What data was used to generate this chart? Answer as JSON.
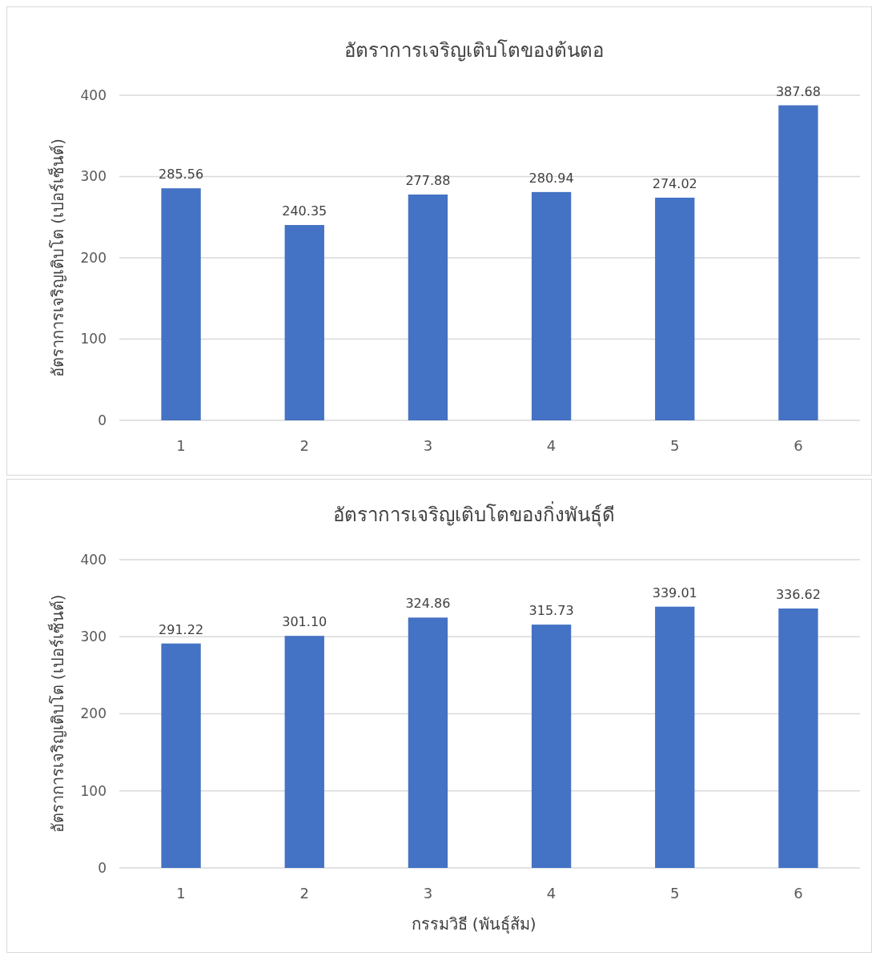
{
  "chart_data": [
    {
      "type": "bar",
      "title": "อัตราการเจริญเติบโตของต้นตอ",
      "ylabel": "อัตราการเจริญเติบโต (เปอร์เซ็นต์)",
      "categories": [
        "1",
        "2",
        "3",
        "4",
        "5",
        "6"
      ],
      "values": [
        285.56,
        240.35,
        277.88,
        280.94,
        274.02,
        387.68
      ],
      "value_labels": [
        "285.56",
        "240.35",
        "277.88",
        "280.94",
        "274.02",
        "387.68"
      ],
      "color": "#4472c4",
      "ylim": [
        0,
        400
      ],
      "yticks": [
        0,
        100,
        200,
        300,
        400
      ],
      "grid": "y"
    },
    {
      "type": "bar",
      "title": "อัตราการเจริญเติบโตของกิ่งพันธุ์ดี",
      "xlabel": "กรรมวิธี (พันธุ์ส้ม)",
      "ylabel": "อัตราการเจริญเติบโต (เปอร์เซ็นต์)",
      "categories": [
        "1",
        "2",
        "3",
        "4",
        "5",
        "6"
      ],
      "values": [
        291.22,
        301.1,
        324.86,
        315.73,
        339.01,
        336.62
      ],
      "value_labels": [
        "291.22",
        "301.10",
        "324.86",
        "315.73",
        "339.01",
        "336.62"
      ],
      "color": "#4472c4",
      "ylim": [
        0,
        400
      ],
      "yticks": [
        0,
        100,
        200,
        300,
        400
      ],
      "grid": "y"
    }
  ]
}
